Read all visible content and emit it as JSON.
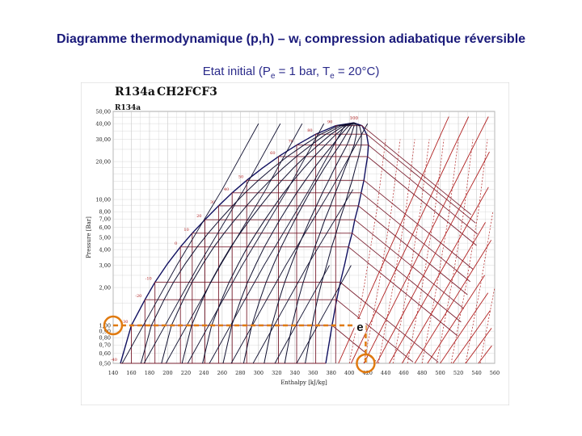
{
  "slide": {
    "title_main": "Diagramme thermodynamique (p,h) – w",
    "title_sub": "i",
    "title_tail": " compression adiabatique réversible",
    "subtitle_a": "Etat initial (P",
    "subtitle_e1": "e",
    "subtitle_b": " = 1 bar, T",
    "subtitle_e2": "e",
    "subtitle_c": " = 20°C)"
  },
  "chart_data": {
    "type": "line",
    "title": "R134a",
    "subtitle": "CH2FCF3",
    "inner_title": "R134a",
    "xlabel": "Enthalpy [kJ/kg]",
    "ylabel": "Pressure [Bar]",
    "x_scale": "linear",
    "y_scale": "log",
    "xlim": [
      140,
      560
    ],
    "ylim": [
      0.5,
      50
    ],
    "x_ticks": [
      "140",
      "160",
      "180",
      "200",
      "220",
      "240",
      "260",
      "280",
      "300",
      "320",
      "340",
      "360",
      "380",
      "400",
      "420",
      "440",
      "460",
      "480",
      "500",
      "520",
      "540",
      "560"
    ],
    "y_ticks": [
      "50,00",
      "40,00",
      "30,00",
      "20,00",
      "10,00",
      "8,00",
      "7,00",
      "6,00",
      "5,00",
      "4,00",
      "3,00",
      "2,00",
      "1,00",
      "0,90",
      "0,80",
      "0,70",
      "0,60",
      "0,50"
    ],
    "y_tick_values": [
      50,
      40,
      30,
      20,
      10,
      8,
      7,
      6,
      5,
      4,
      3,
      2,
      1,
      0.9,
      0.8,
      0.7,
      0.6,
      0.5
    ],
    "grid": true,
    "critical_point_label": "100",
    "isotherm_labels": [
      "-40",
      "-30",
      "-20",
      "-10",
      "0",
      "10",
      "20",
      "30",
      "40",
      "50",
      "60",
      "70",
      "80",
      "90"
    ],
    "initial_state": {
      "label": "e",
      "h": 418,
      "p": 1.0
    },
    "colors": {
      "isotherm": "#101060",
      "isentrope": "#b02020",
      "saturation": "#101060",
      "marker": "#e07a10",
      "grid": "#c8c8c8"
    }
  }
}
